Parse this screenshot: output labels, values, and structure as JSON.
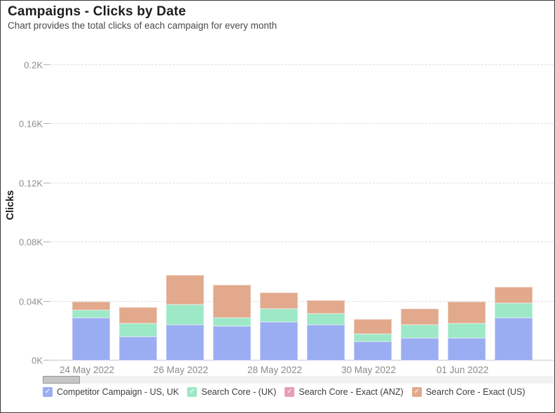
{
  "header": {
    "title": "Campaigns - Clicks by Date",
    "subtitle": "Chart provides the total clicks of each campaign for every month"
  },
  "chart_data": {
    "type": "bar",
    "stacked": true,
    "title": "Campaigns - Clicks by Date",
    "xlabel": "",
    "ylabel": "Clicks",
    "categories": [
      "24 May 2022",
      "25 May 2022",
      "26 May 2022",
      "27 May 2022",
      "28 May 2022",
      "29 May 2022",
      "30 May 2022",
      "31 May 2022",
      "01 Jun 2022",
      "02 Jun 2022"
    ],
    "x_axis_visible_tick_labels": [
      "24 May 2022",
      "26 May 2022",
      "28 May 2022",
      "30 May 2022",
      "01 Jun 2022"
    ],
    "series": [
      {
        "name": "Competitor Campaign - US, UK",
        "color": "#9badf2",
        "values": [
          29,
          16,
          24,
          23,
          26,
          24,
          13,
          15,
          15,
          29
        ]
      },
      {
        "name": "Search Core - (UK)",
        "color": "#9de8c6",
        "values": [
          5,
          9,
          14,
          6,
          9,
          8,
          5,
          9,
          10,
          10
        ]
      },
      {
        "name": "Search Core - Exact (ANZ)",
        "color": "#e79dbc",
        "values": [
          0,
          0,
          0,
          0,
          0,
          0,
          0,
          0,
          0,
          0
        ]
      },
      {
        "name": "Search Core - Exact (US)",
        "color": "#e2a98c",
        "values": [
          6,
          11,
          20,
          22,
          11,
          9,
          10,
          11,
          15,
          11
        ]
      }
    ],
    "totals": [
      40,
      36,
      58,
      51,
      46,
      41,
      28,
      35,
      40,
      50
    ],
    "y_ticks": [
      {
        "value": 0,
        "label": "0K"
      },
      {
        "value": 40,
        "label": "0.04K"
      },
      {
        "value": 80,
        "label": "0.08K"
      },
      {
        "value": 120,
        "label": "0.12K"
      },
      {
        "value": 160,
        "label": "0.16K"
      },
      {
        "value": 200,
        "label": "0.2K"
      }
    ],
    "ylim": [
      0,
      200
    ],
    "grid": "horizontal-dashed",
    "legend_position": "bottom",
    "legend_check_glyph": "✓"
  }
}
